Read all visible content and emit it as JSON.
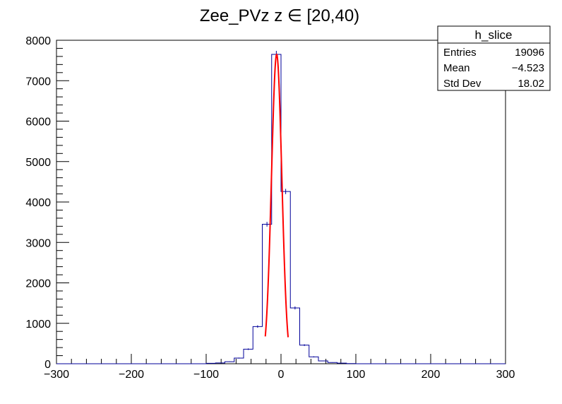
{
  "chart_data": {
    "type": "bar",
    "title": "Zee_PVz z ∈ [20,40)",
    "xlabel": "",
    "ylabel": "",
    "xlim": [
      -300,
      300
    ],
    "ylim": [
      0,
      8000
    ],
    "x_ticks": [
      -300,
      -200,
      -100,
      0,
      100,
      200,
      300
    ],
    "x_tick_labels": [
      "−300",
      "−200",
      "−100",
      "0",
      "100",
      "200",
      "300"
    ],
    "y_ticks": [
      0,
      1000,
      2000,
      3000,
      4000,
      5000,
      6000,
      7000,
      8000
    ],
    "y_tick_labels": [
      "0",
      "1000",
      "2000",
      "3000",
      "4000",
      "5000",
      "6000",
      "7000",
      "8000"
    ],
    "grid": false,
    "series": [
      {
        "kind": "histogram",
        "color": "#000099",
        "bin_edges": [
          -300,
          -287.5,
          -275,
          -262.5,
          -250,
          -237.5,
          -225,
          -212.5,
          -200,
          -187.5,
          -175,
          -162.5,
          -150,
          -137.5,
          -125,
          -112.5,
          -100,
          -87.5,
          -75,
          -62.5,
          -50,
          -37.5,
          -25,
          -12.5,
          0,
          12.5,
          25,
          37.5,
          50,
          62.5,
          75,
          87.5,
          100,
          112.5,
          125,
          137.5,
          150,
          162.5,
          175,
          187.5,
          200,
          212.5,
          225,
          237.5,
          250,
          262.5,
          275,
          287.5,
          300
        ],
        "counts": [
          0,
          0,
          0,
          0,
          0,
          0,
          0,
          0,
          0,
          0,
          0,
          0,
          0,
          0,
          0,
          0,
          10,
          20,
          50,
          140,
          360,
          920,
          3450,
          7650,
          4260,
          1380,
          460,
          170,
          70,
          30,
          15,
          5,
          0,
          0,
          0,
          0,
          0,
          0,
          0,
          0,
          0,
          0,
          0,
          0,
          0,
          0,
          0,
          0
        ]
      },
      {
        "kind": "fit",
        "color": "#ff0000",
        "x_range": [
          -21,
          9.5
        ],
        "mean": -5.8,
        "sigma": 6.9,
        "amplitude": 7650
      }
    ],
    "stats_box": {
      "name": "h_slice",
      "rows": [
        {
          "label": "Entries",
          "value": "19096"
        },
        {
          "label": "Mean",
          "value": "−4.523"
        },
        {
          "label": "Std Dev",
          "value": "18.02"
        }
      ]
    }
  }
}
